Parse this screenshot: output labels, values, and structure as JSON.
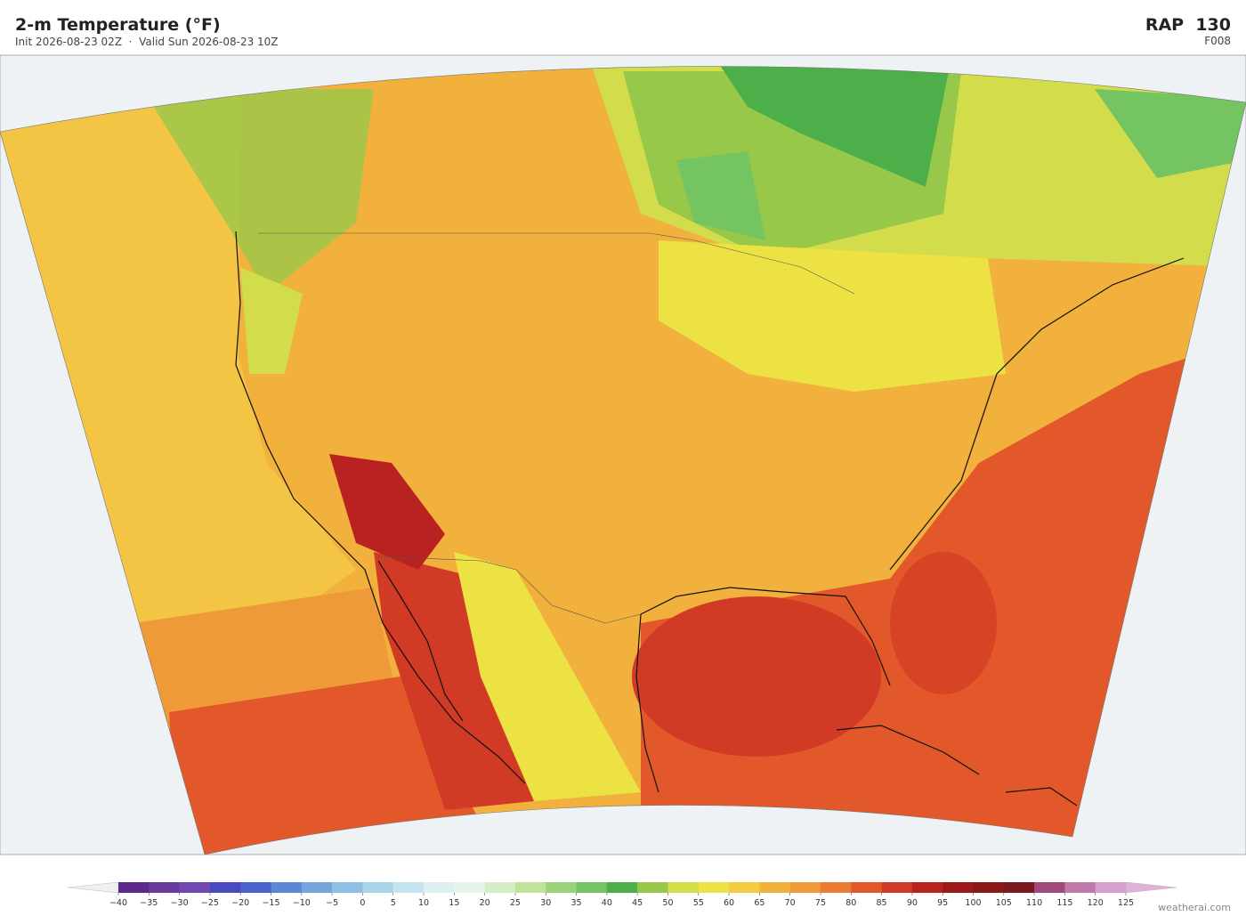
{
  "header": {
    "title": "2-m Temperature  (°F)",
    "subtitle": "Init 2026-08-23 02Z  ·  Valid Sun 2026-08-23 10Z",
    "model": "RAP  130",
    "forecast_hour": "F008"
  },
  "colorbar": {
    "ticks": [
      {
        "value": -40,
        "label": "−40"
      },
      {
        "value": -35,
        "label": "−35"
      },
      {
        "value": -30,
        "label": "−30"
      },
      {
        "value": -25,
        "label": "−25"
      },
      {
        "value": -20,
        "label": "−20"
      },
      {
        "value": -15,
        "label": "−15"
      },
      {
        "value": -10,
        "label": "−10"
      },
      {
        "value": -5,
        "label": "−5"
      },
      0,
      5,
      10,
      15,
      20,
      25,
      30,
      35,
      40,
      45,
      50,
      55,
      60,
      65,
      70,
      75,
      80,
      85,
      90,
      95,
      100,
      105,
      110,
      115,
      120,
      125
    ],
    "colors": [
      "#5b2a8c",
      "#6a3a9e",
      "#7048b0",
      "#4a4abf",
      "#4a62cc",
      "#5e86d4",
      "#76a4dc",
      "#8fbfe2",
      "#a9d4ea",
      "#c4e4f0",
      "#dcf0f2",
      "#e6f5ea",
      "#d4edc4",
      "#bfe39b",
      "#9ad47a",
      "#74c462",
      "#4caf4a",
      "#98c84a",
      "#d3dc4a",
      "#ece244",
      "#f4cc44",
      "#f2b03c",
      "#ef9a38",
      "#ea7d33",
      "#e2582a",
      "#d13a24",
      "#b82220",
      "#9c1a1a",
      "#8a1818",
      "#7a1a20",
      "#a04a7a",
      "#c07aaa",
      "#d6a0cc"
    ],
    "under_color": "#f0f0f0",
    "over_color": "#dfb0d8"
  },
  "credit": "weatherai.com"
}
